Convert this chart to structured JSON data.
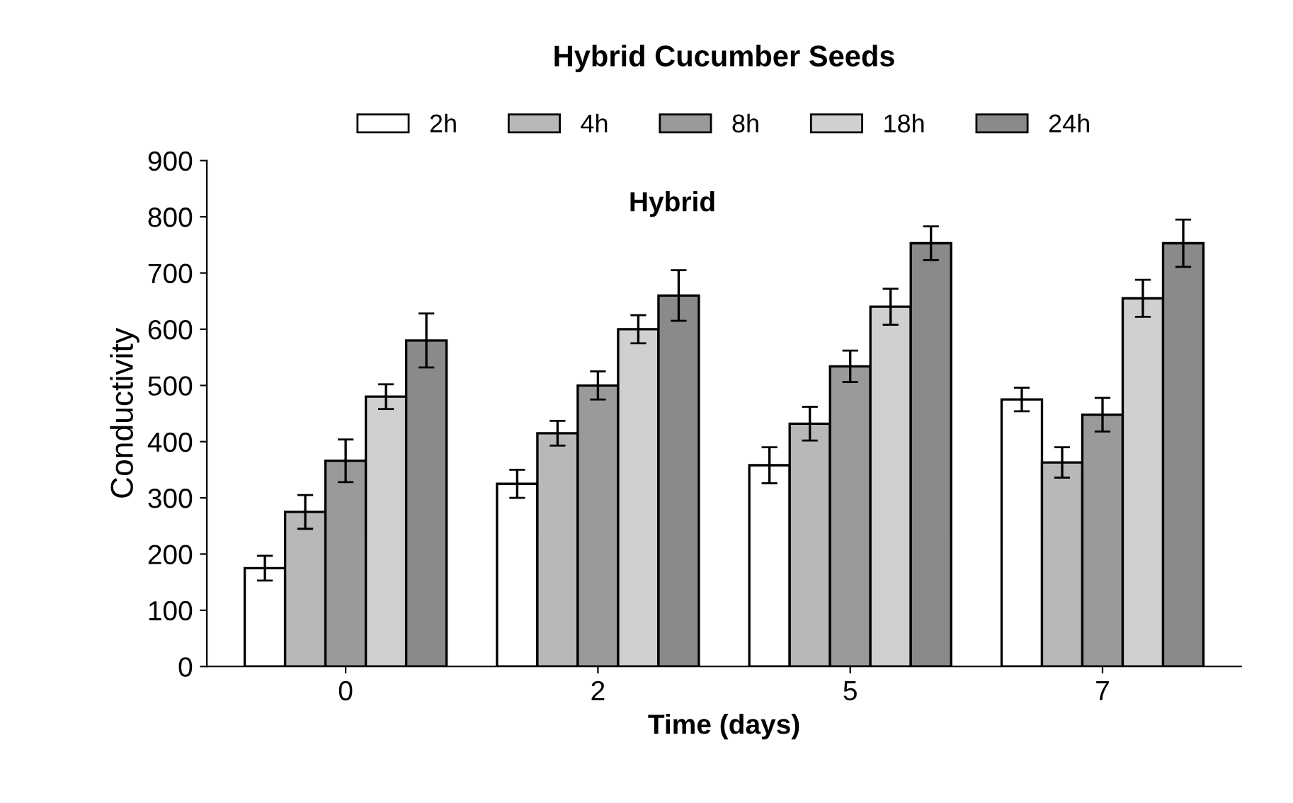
{
  "chart_data": {
    "type": "bar",
    "title": "Hybrid Cucumber Seeds",
    "xlabel": "Time (days)",
    "ylabel": "Conductivity",
    "annotations": [
      "Hybrid"
    ],
    "categories": [
      "0",
      "2",
      "5",
      "7"
    ],
    "series": [
      {
        "name": "2h",
        "color": "#ffffff",
        "values": [
          175,
          325,
          358,
          475
        ],
        "errors": [
          22,
          25,
          32,
          21
        ]
      },
      {
        "name": "4h",
        "color": "#b8b8b8",
        "values": [
          275,
          415,
          432,
          363
        ],
        "errors": [
          30,
          22,
          30,
          27
        ]
      },
      {
        "name": "8h",
        "color": "#9a9a9a",
        "values": [
          366,
          500,
          534,
          448
        ],
        "errors": [
          38,
          25,
          28,
          30
        ]
      },
      {
        "name": "18h",
        "color": "#d0d0d0",
        "values": [
          480,
          600,
          640,
          655
        ],
        "errors": [
          22,
          25,
          32,
          33
        ]
      },
      {
        "name": "24h",
        "color": "#8a8a8a",
        "values": [
          580,
          660,
          753,
          753
        ],
        "errors": [
          48,
          45,
          30,
          42
        ]
      }
    ],
    "ylim": [
      0,
      900
    ],
    "yticks": [
      0,
      100,
      200,
      300,
      400,
      500,
      600,
      700,
      800,
      900
    ],
    "legend": "top",
    "grid": false
  }
}
